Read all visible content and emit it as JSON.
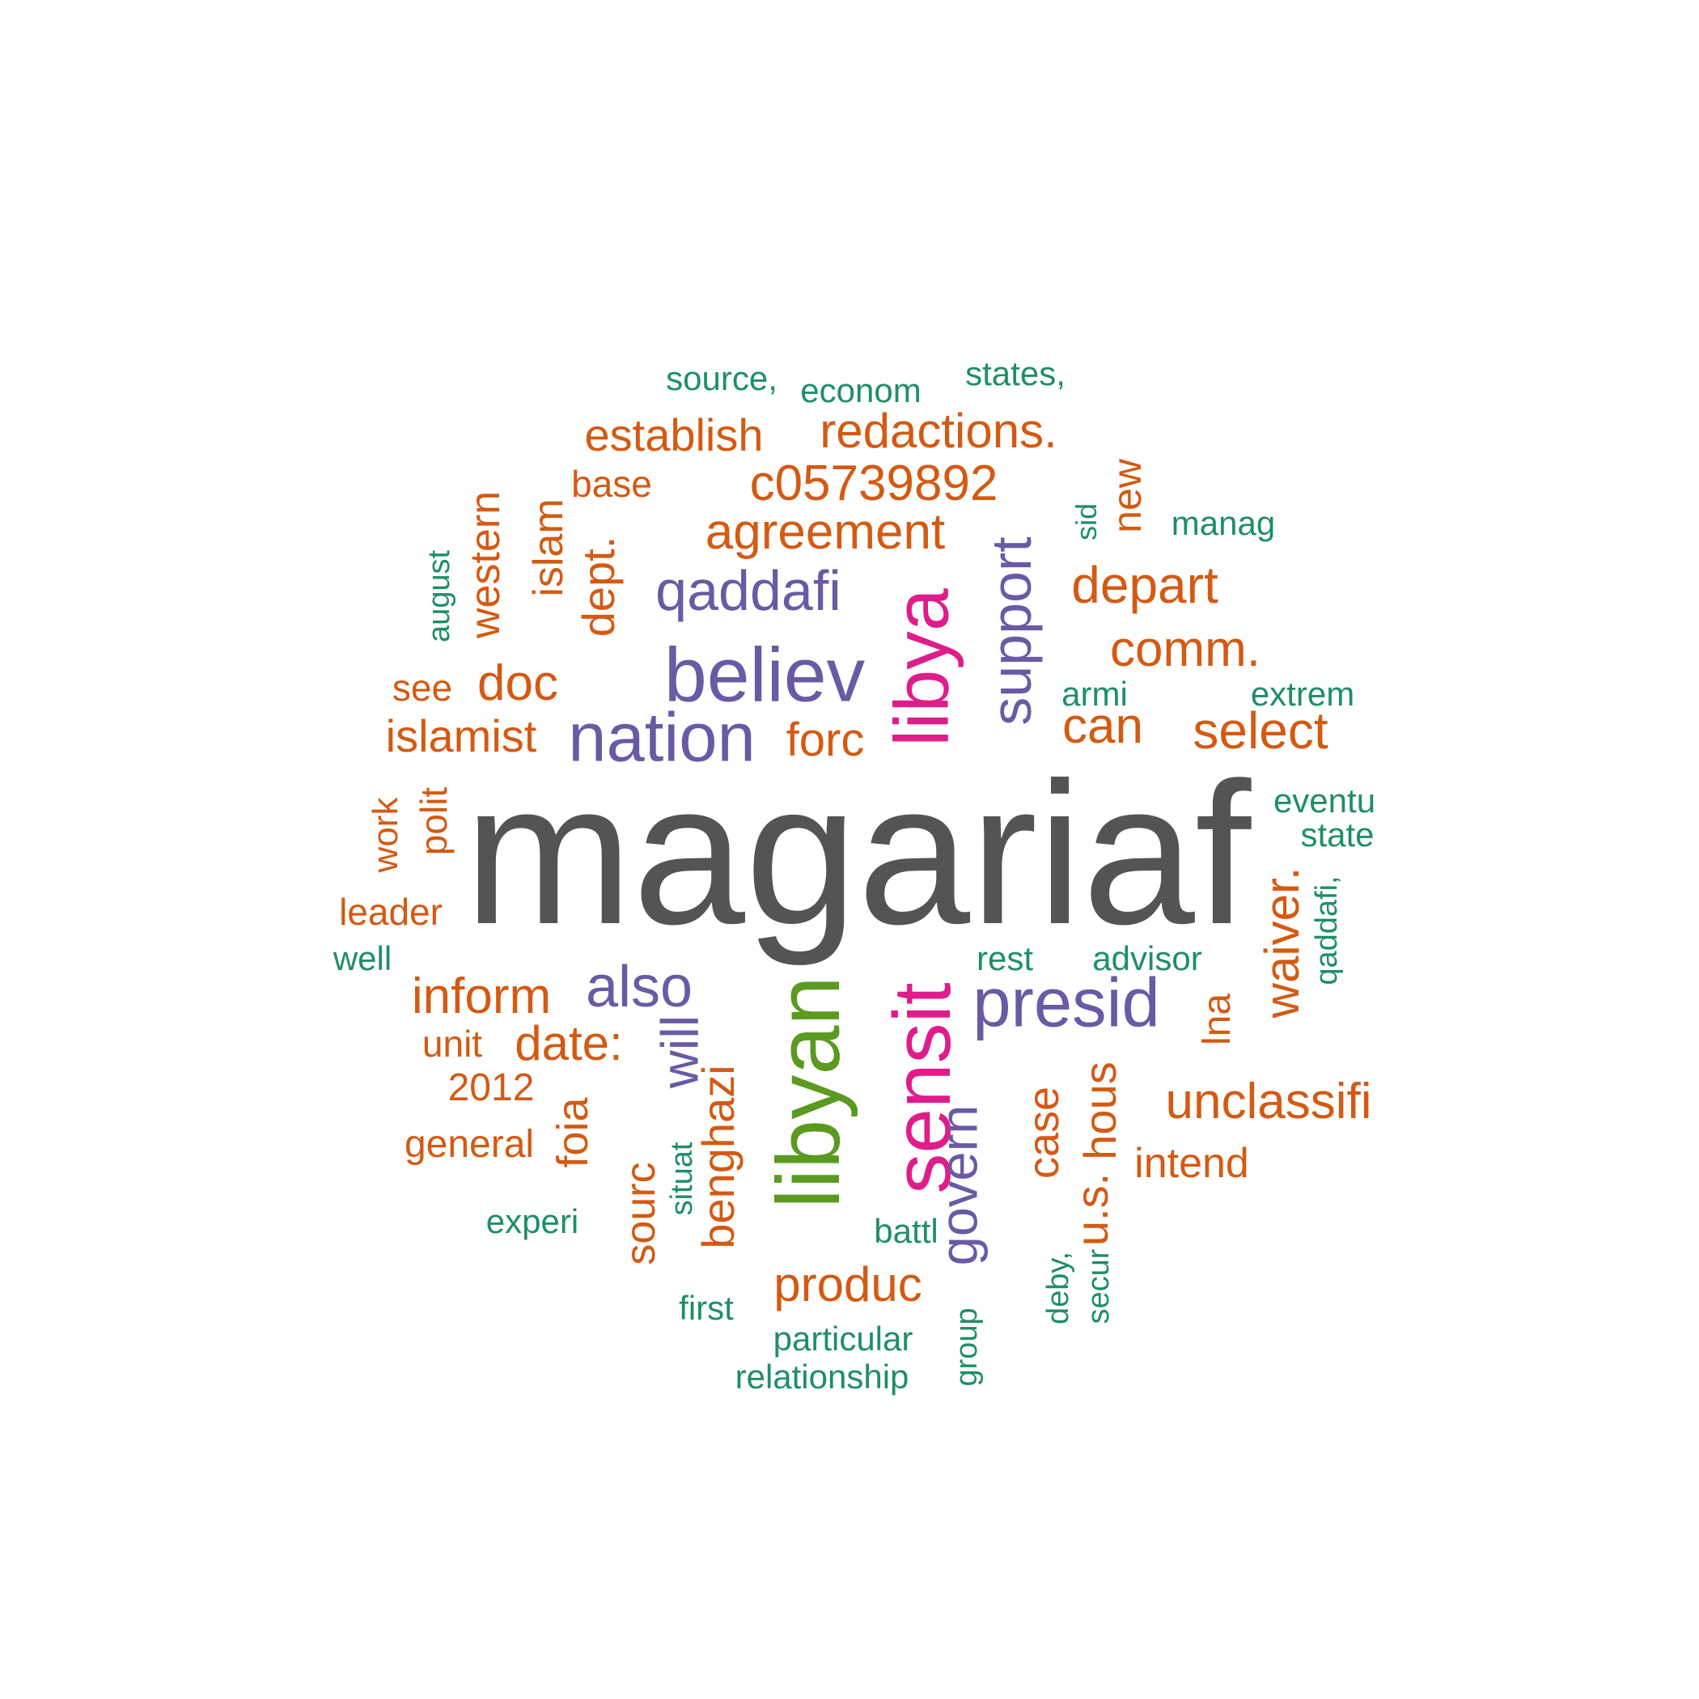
{
  "palette": {
    "grey": "#545454",
    "orange": "#d45a12",
    "purple": "#6a5aa5",
    "pink": "#e01c8a",
    "green": "#5b9a20",
    "teal": "#1e8e6a"
  },
  "words": {
    "magariaf": "magariaf",
    "libyan": "libyan",
    "libya": "libya",
    "sensit": "sensit",
    "believ": "believ",
    "nation": "nation",
    "presid": "presid",
    "qaddafi": "qaddafi",
    "support": "support",
    "also": "also",
    "will": "will",
    "govern": "govern",
    "agreement": "agreement",
    "c05739892": "c05739892",
    "redactions": "redactions.",
    "establish": "establish",
    "depart": "depart",
    "comm": "comm.",
    "select": "select",
    "can": "can",
    "forc": "forc",
    "doc": "doc",
    "islamist": "islamist",
    "inform": "inform",
    "date": "date:",
    "unclassifi": "unclassifi",
    "produc": "produc",
    "waiver": "waiver.",
    "dept": "dept.",
    "western": "western",
    "islam": "islam",
    "new": "new",
    "base": "base",
    "see": "see",
    "polit": "polit",
    "work": "work",
    "leader": "leader",
    "unit": "unit",
    "2012": "2012",
    "general": "general",
    "foia": "foia",
    "benghazi": "benghazi",
    "sourc": "sourc",
    "case": "case",
    "hous": "hous",
    "us": "u.s.",
    "lna": "lna",
    "intend": "intend",
    "source": "source,",
    "econom": "econom",
    "states": "states,",
    "manag": "manag",
    "sid": "sid",
    "august": "august",
    "armi": "armi",
    "extrem": "extrem",
    "eventu": "eventu",
    "state": "state",
    "qaddafi_comma": "qaddafi,",
    "rest": "rest",
    "advisor": "advisor",
    "well": "well",
    "experi": "experi",
    "situat": "situat",
    "battl": "battl",
    "first": "first",
    "particular": "particular",
    "relationship": "relationship",
    "group": "group",
    "deby": "deby,",
    "secur": "secur"
  }
}
